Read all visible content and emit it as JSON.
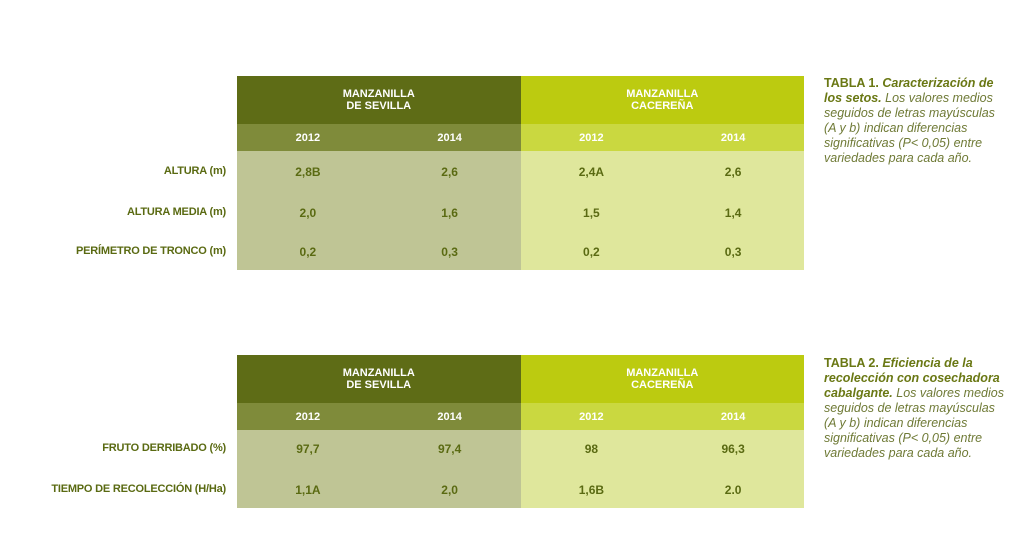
{
  "tables": [
    {
      "headers": [
        "MANZANILLA\nDE SEVILLA",
        "MANZANILLA\nCACEREÑA"
      ],
      "years": [
        "2012",
        "2014",
        "2012",
        "2014"
      ],
      "rows": [
        {
          "label": "ALTURA (m)",
          "values": [
            "2,8B",
            "2,6",
            "2,4A",
            "2,6"
          ]
        },
        {
          "label": "ALTURA MEDIA (m)",
          "values": [
            "2,0",
            "1,6",
            "1,5",
            "1,4"
          ]
        },
        {
          "label": "PERÍMETRO DE TRONCO (m)",
          "values": [
            "0,2",
            "0,3",
            "0,2",
            "0,3"
          ]
        }
      ],
      "caption": {
        "title_bold": "TABLA 1.",
        "title_rest": "Caracterización de los setos.",
        "text": "Los valores medios seguidos de letras mayúsculas (A y b) indican diferencias significativas (P< 0,05) entre variedades para cada año."
      }
    },
    {
      "headers": [
        "MANZANILLA\nDE SEVILLA",
        "MANZANILLA\nCACEREÑA"
      ],
      "years": [
        "2012",
        "2014",
        "2012",
        "2014"
      ],
      "rows": [
        {
          "label": "FRUTO DERRIBADO (%)",
          "values": [
            "97,7",
            "97,4",
            "98",
            "96,3"
          ]
        },
        {
          "label": "TIEMPO DE RECOLECCIÓN (H/Ha)",
          "values": [
            "1,1A",
            "2,0",
            "1,6B",
            "2.0"
          ]
        }
      ],
      "caption": {
        "title_bold": "TABLA 2.",
        "title_rest": "Eficiencia de la recolección con cosechadora cabalgante.",
        "text": "Los valores medios seguidos de letras mayúsculas (A y b) indican diferencias significativas (P< 0,05) entre variedades para cada año."
      }
    }
  ]
}
